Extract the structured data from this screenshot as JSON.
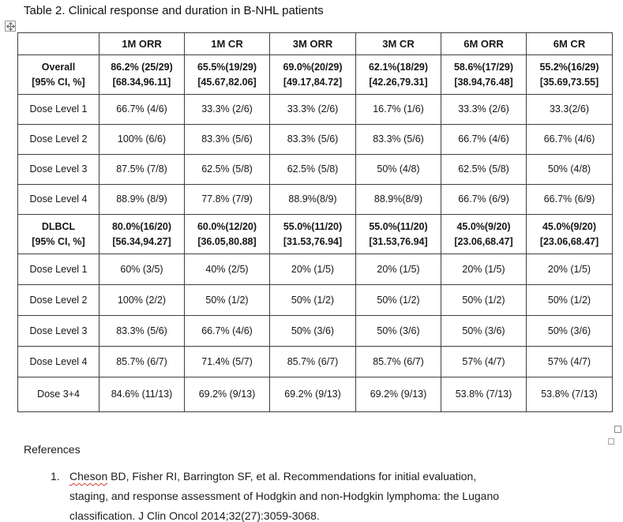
{
  "title": "Table 2. Clinical response and duration in B-NHL patients",
  "icons": {
    "move_handle": "table-move-handle",
    "resize_handle": "table-resize-handle"
  },
  "table": {
    "headers": [
      "",
      "1M ORR",
      "1M CR",
      "3M ORR",
      "3M CR",
      "6M ORR",
      "6M CR"
    ],
    "rows": [
      {
        "label": [
          "Overall",
          "[95% CI, %]"
        ],
        "bold": true,
        "size": "tall",
        "cells": [
          [
            "86.2% (25/29)",
            "[68.34,96.11]"
          ],
          [
            "65.5%(19/29)",
            "[45.67,82.06]"
          ],
          [
            "69.0%(20/29)",
            "[49.17,84.72]"
          ],
          [
            "62.1%(18/29)",
            "[42.26,79.31]"
          ],
          [
            "58.6%(17/29)",
            "[38.94,76.48]"
          ],
          [
            "55.2%(16/29)",
            "[35.69,73.55]"
          ]
        ]
      },
      {
        "label": [
          "Dose Level 1"
        ],
        "bold": false,
        "size": "mid",
        "cells": [
          [
            "66.7% (4/6)"
          ],
          [
            "33.3% (2/6)"
          ],
          [
            "33.3% (2/6)"
          ],
          [
            "16.7% (1/6)"
          ],
          [
            "33.3% (2/6)"
          ],
          [
            "33.3(2/6)"
          ]
        ]
      },
      {
        "label": [
          "Dose Level 2"
        ],
        "bold": false,
        "size": "mid",
        "cells": [
          [
            "100% (6/6)"
          ],
          [
            "83.3% (5/6)"
          ],
          [
            "83.3% (5/6)"
          ],
          [
            "83.3% (5/6)"
          ],
          [
            "66.7% (4/6)"
          ],
          [
            "66.7% (4/6)"
          ]
        ]
      },
      {
        "label": [
          "Dose Level 3"
        ],
        "bold": false,
        "size": "mid",
        "cells": [
          [
            "87.5% (7/8)"
          ],
          [
            "62.5% (5/8)"
          ],
          [
            "62.5% (5/8)"
          ],
          [
            "50% (4/8)"
          ],
          [
            "62.5% (5/8)"
          ],
          [
            "50% (4/8)"
          ]
        ]
      },
      {
        "label": [
          "Dose Level 4"
        ],
        "bold": false,
        "size": "mid",
        "cells": [
          [
            "88.9% (8/9)"
          ],
          [
            "77.8% (7/9)"
          ],
          [
            "88.9%(8/9)"
          ],
          [
            "88.9%(8/9)"
          ],
          [
            "66.7% (6/9)"
          ],
          [
            "66.7% (6/9)"
          ]
        ]
      },
      {
        "label": [
          "DLBCL",
          "[95% CI, %]"
        ],
        "bold": true,
        "size": "tall",
        "cells": [
          [
            "80.0%(16/20)",
            "[56.34,94.27]"
          ],
          [
            "60.0%(12/20)",
            "[36.05,80.88]"
          ],
          [
            "55.0%(11/20)",
            "[31.53,76.94]"
          ],
          [
            "55.0%(11/20)",
            "[31.53,76.94]"
          ],
          [
            "45.0%(9/20)",
            "[23.06,68.47]"
          ],
          [
            "45.0%(9/20)",
            "[23.06,68.47]"
          ]
        ]
      },
      {
        "label": [
          "Dose Level 1"
        ],
        "bold": false,
        "size": "mid2",
        "cells": [
          [
            "60% (3/5)"
          ],
          [
            "40% (2/5)"
          ],
          [
            "20% (1/5)"
          ],
          [
            "20% (1/5)"
          ],
          [
            "20% (1/5)"
          ],
          [
            "20% (1/5)"
          ]
        ]
      },
      {
        "label": [
          "Dose Level 2"
        ],
        "bold": false,
        "size": "mid2",
        "cells": [
          [
            "100% (2/2)"
          ],
          [
            "50% (1/2)"
          ],
          [
            "50% (1/2)"
          ],
          [
            "50% (1/2)"
          ],
          [
            "50% (1/2)"
          ],
          [
            "50% (1/2)"
          ]
        ]
      },
      {
        "label": [
          "Dose Level 3"
        ],
        "bold": false,
        "size": "mid2",
        "cells": [
          [
            "83.3% (5/6)"
          ],
          [
            "66.7% (4/6)"
          ],
          [
            "50% (3/6)"
          ],
          [
            "50% (3/6)"
          ],
          [
            "50% (3/6)"
          ],
          [
            "50% (3/6)"
          ]
        ]
      },
      {
        "label": [
          "Dose Level 4"
        ],
        "bold": false,
        "size": "mid2",
        "cells": [
          [
            "85.7% (6/7)"
          ],
          [
            "71.4% (5/7)"
          ],
          [
            "85.7% (6/7)"
          ],
          [
            "85.7% (6/7)"
          ],
          [
            "57% (4/7)"
          ],
          [
            "57% (4/7)"
          ]
        ]
      },
      {
        "label": [
          "Dose 3+4"
        ],
        "bold": false,
        "size": "last",
        "cells": [
          [
            "84.6% (11/13)"
          ],
          [
            "69.2% (9/13)"
          ],
          [
            "69.2% (9/13)"
          ],
          [
            "69.2% (9/13)"
          ],
          [
            "53.8% (7/13)"
          ],
          [
            "53.8% (7/13)"
          ]
        ]
      }
    ]
  },
  "references": {
    "heading": "References",
    "items": [
      {
        "number": "1.",
        "segments": [
          {
            "text": "Cheson",
            "mark": "red"
          },
          {
            "text": " BD, Fisher RI, Barrington SF, et al. Recommendations for initial evaluation, staging, and response assessment of Hodgkin and non-Hodgkin lymphoma: the Lugano classification. J ",
            "mark": null
          },
          {
            "text": "Clin",
            "mark": "red"
          },
          {
            "text": " ",
            "mark": null
          },
          {
            "text": "Oncol",
            "mark": "red"
          },
          {
            "text": " 2014",
            "mark": null
          },
          {
            "text": ";32(",
            "mark": "blue"
          },
          {
            "text": "27):3059-3068.",
            "mark": null
          }
        ]
      }
    ]
  }
}
